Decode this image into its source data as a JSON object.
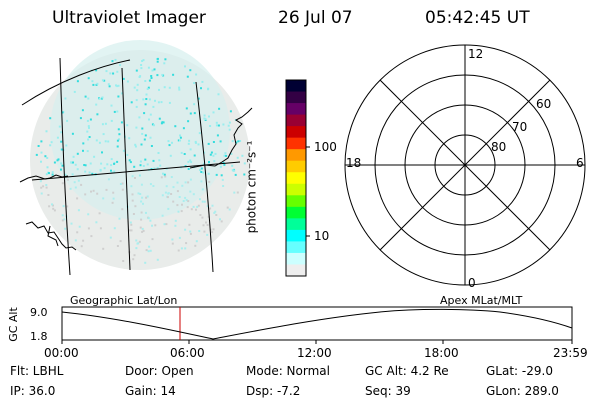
{
  "header": {
    "title": "Ultraviolet Imager",
    "date": "26 Jul 07",
    "time": "05:42:45 UT"
  },
  "colorbar": {
    "unit_label": "photon cm⁻²s⁻¹",
    "ticks": [
      "100",
      "10"
    ],
    "colors": [
      "#000033",
      "#330044",
      "#660066",
      "#990033",
      "#cc0000",
      "#ff3300",
      "#ff9900",
      "#ffcc00",
      "#ffff00",
      "#ccff00",
      "#66ff00",
      "#00ff33",
      "#00ff99",
      "#00ffff",
      "#66ffff",
      "#ccffff",
      "#eeeeee"
    ]
  },
  "polar_plot": {
    "ring_labels": [
      "60",
      "70",
      "80"
    ],
    "mlt_labels": {
      "top": "12",
      "left": "18",
      "right": "6",
      "bottom": "0"
    }
  },
  "timeline": {
    "left_label": "Geographic Lat/Lon",
    "right_label": "Apex MLat/MLT",
    "axis_title": "GC Alt",
    "y_ticks": [
      "9.0",
      "1.8"
    ],
    "x_ticks": [
      "00:00",
      "06:00",
      "12:00",
      "18:00",
      "23:59"
    ]
  },
  "status": {
    "flt": "Flt: LBHL",
    "door": "Door: Open",
    "mode": "Mode: Normal",
    "gc_alt": "GC Alt: 4.2 Re",
    "glat": "GLat: -29.0",
    "ip": "IP: 36.0",
    "gain": "Gain: 14",
    "dsp": "Dsp:    -7.2",
    "seq": "Seq: 39",
    "glon": "GLon: 289.0"
  }
}
